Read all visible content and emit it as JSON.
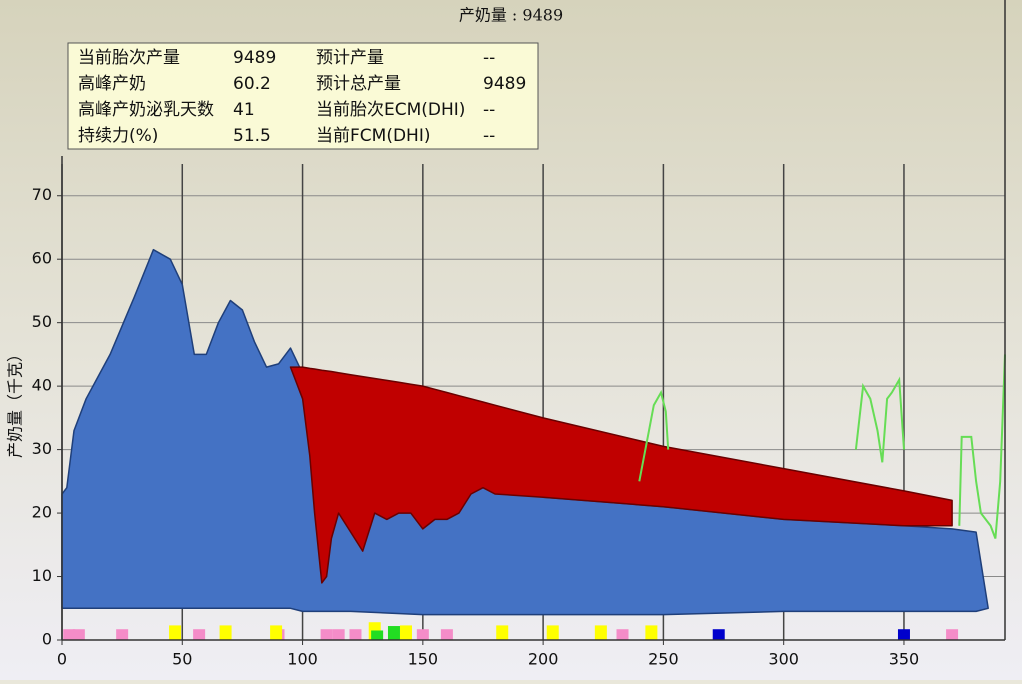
{
  "chart_data": {
    "type": "area",
    "title": "产奶量 : 9489",
    "y_label": "产奶量（千克）",
    "xlim": [
      0,
      392
    ],
    "ylim": [
      0,
      75
    ],
    "xticks": [
      0,
      50,
      100,
      150,
      200,
      250,
      300,
      350
    ],
    "yticks": [
      0,
      10,
      20,
      30,
      40,
      50,
      60,
      70
    ],
    "grid": true,
    "info_box": {
      "rows": [
        [
          "当前胎次产量",
          "9489",
          "预计产量",
          "--"
        ],
        [
          "高峰产奶",
          "60.2",
          "预计总产量",
          "9489"
        ],
        [
          "高峰产奶泌乳天数",
          "41",
          "当前胎次ECM(DHI)",
          "--"
        ],
        [
          "持续力(%)",
          "51.5",
          "当前FCM(DHI)",
          "--"
        ]
      ]
    },
    "series": [
      {
        "type": "area",
        "color": "#4472c4",
        "x": [
          0,
          2,
          5,
          10,
          20,
          30,
          38,
          45,
          50,
          55,
          60,
          65,
          70,
          75,
          80,
          85,
          90,
          95,
          100,
          105,
          110,
          120,
          150,
          175,
          180,
          200,
          250,
          300,
          350,
          370,
          380,
          385
        ],
        "values": [
          23,
          24,
          33,
          38,
          45,
          54,
          61.5,
          60,
          56,
          45,
          45,
          50,
          53.5,
          52,
          47,
          43,
          43.5,
          46,
          42,
          38,
          34,
          27,
          23,
          29,
          28,
          22.5,
          21,
          19,
          18,
          17.5,
          17,
          5
        ],
        "lower": [
          5,
          5,
          5,
          5,
          5,
          5,
          5,
          5,
          5,
          5,
          5,
          5,
          5,
          5,
          5,
          5,
          5,
          5,
          4.5,
          4.5,
          4.5,
          4.5,
          4,
          4,
          4,
          4,
          4,
          4.5,
          4.5,
          4.5,
          4.5,
          5
        ]
      },
      {
        "type": "area",
        "color": "#c00000",
        "x": [
          95,
          100,
          103,
          105,
          108,
          110,
          112,
          115,
          120,
          125,
          130,
          135,
          140,
          145,
          150,
          155,
          160,
          165,
          170,
          175,
          180,
          200,
          250,
          300,
          350,
          370
        ],
        "values": [
          43,
          43,
          42.8,
          42.7,
          42.5,
          42.4,
          42.3,
          42.1,
          41.8,
          41.5,
          41.2,
          40.9,
          40.6,
          40.3,
          40,
          39.5,
          39,
          38.5,
          38,
          37.5,
          37,
          35,
          30.5,
          27,
          23.5,
          22
        ],
        "lower": [
          43,
          38,
          29,
          20,
          9,
          10,
          16,
          20,
          17,
          14,
          20,
          19,
          20,
          20,
          17.5,
          19,
          19,
          20,
          23,
          24,
          23,
          22.5,
          21,
          19,
          18,
          18
        ]
      },
      {
        "type": "line",
        "color": "#66dd55",
        "x": [
          240,
          244,
          246,
          249,
          251,
          252,
          253,
          330,
          333,
          336,
          339,
          341,
          343,
          345,
          348,
          350,
          351,
          373,
          374,
          378,
          380,
          382,
          386,
          388,
          390,
          392
        ],
        "values": [
          25,
          33,
          37,
          39,
          36,
          30,
          null,
          30,
          40,
          38,
          33,
          28,
          38,
          39,
          41,
          30,
          null,
          18,
          32,
          32,
          25,
          20,
          18,
          16,
          25,
          45
        ]
      },
      {
        "type": "bar",
        "color": "#f48cc8",
        "x": [
          3,
          7,
          25,
          57,
          90,
          110,
          115,
          122,
          150,
          160,
          233,
          370
        ],
        "values": [
          1.7,
          1.7,
          1.7,
          1.7,
          1.7,
          1.7,
          1.7,
          1.7,
          1.7,
          1.7,
          1.7,
          1.7
        ]
      },
      {
        "type": "bar",
        "color": "#ffff00",
        "x": [
          47,
          68,
          89,
          130,
          143,
          183,
          204,
          224,
          245
        ],
        "values": [
          2.3,
          2.3,
          2.3,
          2.8,
          2.3,
          2.3,
          2.3,
          2.3,
          2.3
        ]
      },
      {
        "type": "bar",
        "color": "#22dd22",
        "x": [
          131,
          138
        ],
        "values": [
          1.5,
          2.2
        ]
      },
      {
        "type": "bar",
        "color": "#0000cc",
        "x": [
          273,
          350
        ],
        "values": [
          1.7,
          1.7
        ]
      }
    ]
  }
}
